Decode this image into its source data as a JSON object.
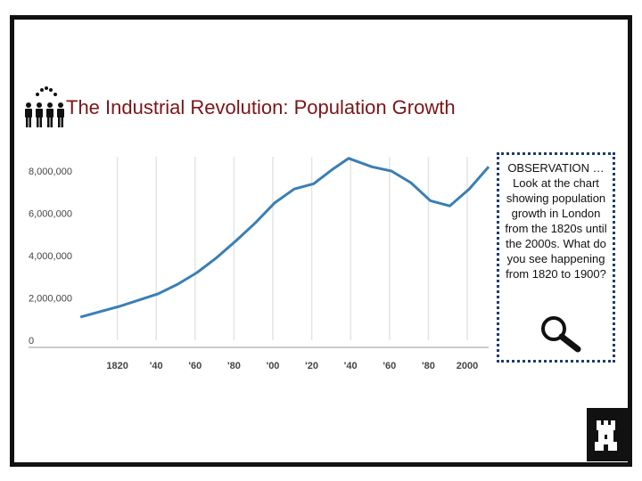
{
  "slide": {
    "title": "The Industrial Revolution: Population Growth"
  },
  "observation": {
    "heading": "OBSERVATION …",
    "text": "Look at the chart showing population growth in London from the 1820s until the 2000s. What do you see happening from 1820 to 1900?"
  },
  "icons": {
    "people": "people-group-icon",
    "magnifier": "magnifying-glass-icon",
    "castle": "castle-tower-icon"
  },
  "colors": {
    "title": "#7a1618",
    "line": "#3a7fb5",
    "frame": "#111111",
    "box_border": "#1f3b73"
  },
  "chart_data": {
    "type": "line",
    "title": "",
    "xlabel": "",
    "ylabel": "",
    "x_tick_labels": [
      "1820",
      "'40",
      "'60",
      "'80",
      "'00",
      "'20",
      "'40",
      "'60",
      "'80",
      "2000"
    ],
    "y_tick_labels": [
      "0",
      "2,000,000",
      "4,000,000",
      "6,000,000",
      "8,000,000"
    ],
    "ylim": [
      0,
      8000000
    ],
    "xlim": [
      1800,
      2011
    ],
    "grid": true,
    "series": [
      {
        "x": [
          1801,
          1811,
          1821,
          1831,
          1841,
          1851,
          1861,
          1871,
          1881,
          1891,
          1901,
          1911,
          1921,
          1931,
          1939,
          1951,
          1961,
          1971,
          1981,
          1991,
          2001,
          2011
        ],
        "values": [
          1100000,
          1350000,
          1600000,
          1900000,
          2200000,
          2650000,
          3200000,
          3900000,
          4700000,
          5550000,
          6500000,
          7150000,
          7400000,
          8100000,
          8600000,
          8200000,
          8000000,
          7450000,
          6600000,
          6350000,
          7150000,
          8200000
        ]
      }
    ]
  }
}
